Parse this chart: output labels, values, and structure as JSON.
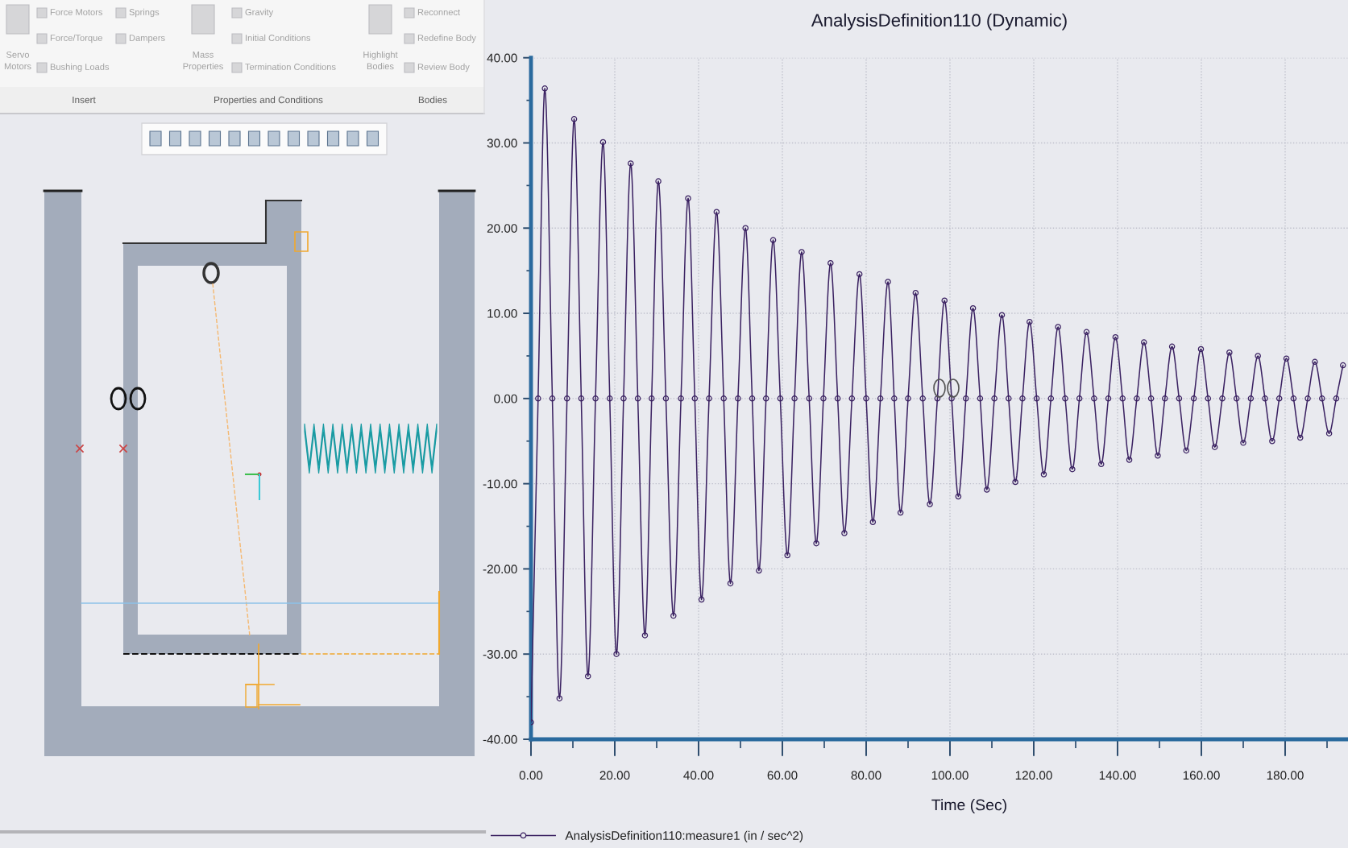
{
  "chart_data": {
    "type": "line",
    "title": "AnalysisDefinition110 (Dynamic)",
    "xlabel": "Time (Sec)",
    "x": [
      0.0,
      1.7,
      3.3,
      5.1,
      6.8,
      8.6,
      10.3,
      12.0,
      13.6,
      15.4,
      17.2,
      18.8,
      20.4,
      22.1,
      23.8,
      25.5,
      27.2,
      28.8,
      30.4,
      32.2,
      34.0,
      35.8,
      37.5,
      39.1,
      40.7,
      42.5,
      44.3,
      46.0,
      47.6,
      49.4,
      51.2,
      52.8,
      54.4,
      56.1,
      57.8,
      59.5,
      61.2,
      62.9,
      64.6,
      66.4,
      68.1,
      69.8,
      71.5,
      73.2,
      74.8,
      76.6,
      78.4,
      80.0,
      81.6,
      83.4,
      85.2,
      86.7,
      88.2,
      90.0,
      91.8,
      93.5,
      95.2,
      97.0,
      98.7,
      100.4,
      102.0,
      103.8,
      105.5,
      107.2,
      108.8,
      110.6,
      112.4,
      114.0,
      115.6,
      117.3,
      119.0,
      120.7,
      122.4,
      124.1,
      125.8,
      127.5,
      129.2,
      130.9,
      132.6,
      134.4,
      136.1,
      137.8,
      139.5,
      141.2,
      142.8,
      144.6,
      146.3,
      148.0,
      149.6,
      151.3,
      153.0,
      154.7,
      156.4,
      158.2,
      159.9,
      161.6,
      163.2,
      165.0,
      166.7,
      168.4,
      170.0,
      171.8,
      173.5,
      175.2,
      176.9,
      178.6,
      180.3,
      182.0,
      183.6,
      185.4,
      187.1,
      188.8,
      190.5,
      192.2,
      193.8
    ],
    "series": [
      {
        "name": "AnalysisDefinition110:measure1 (in / sec^2)",
        "color": "#3b2262",
        "values": [
          -38.0,
          0,
          36.4,
          0,
          -35.2,
          0,
          32.8,
          0,
          -32.6,
          0,
          30.1,
          0,
          -30.0,
          0,
          27.6,
          0,
          -27.8,
          0,
          25.5,
          0,
          -25.5,
          0,
          23.5,
          0,
          -23.6,
          0,
          21.9,
          0,
          -21.7,
          0,
          20.0,
          0,
          -20.2,
          0,
          18.6,
          0,
          -18.4,
          0,
          17.2,
          0,
          -17.0,
          0,
          15.9,
          0,
          -15.8,
          0,
          14.6,
          0,
          -14.5,
          0,
          13.7,
          0,
          -13.4,
          0,
          12.4,
          0,
          -12.4,
          0,
          11.5,
          0,
          -11.5,
          0,
          10.6,
          0,
          -10.7,
          0,
          9.8,
          0,
          -9.8,
          0,
          9.0,
          0,
          -8.9,
          0,
          8.4,
          0,
          -8.3,
          0,
          7.8,
          0,
          -7.7,
          0,
          7.2,
          0,
          -7.2,
          0,
          6.6,
          0,
          -6.7,
          0,
          6.1,
          0,
          -6.1,
          0,
          5.8,
          0,
          -5.7,
          0,
          5.4,
          0,
          -5.2,
          0,
          5.0,
          0,
          -5.0,
          0,
          4.7,
          0,
          -4.6,
          0,
          4.3,
          0,
          -4.1,
          0,
          3.9
        ]
      }
    ],
    "xlim": [
      0,
      195
    ],
    "ylim": [
      -40,
      40
    ],
    "xticks": [
      {
        "value": 0,
        "label": "0.00"
      },
      {
        "value": 10,
        "label": null
      },
      {
        "value": 20,
        "label": "20.00"
      },
      {
        "value": 30,
        "label": null
      },
      {
        "value": 40,
        "label": "40.00"
      },
      {
        "value": 50,
        "label": null
      },
      {
        "value": 60,
        "label": "60.00"
      },
      {
        "value": 70,
        "label": null
      },
      {
        "value": 80,
        "label": "80.00"
      },
      {
        "value": 90,
        "label": null
      },
      {
        "value": 100,
        "label": "100.00"
      },
      {
        "value": 110,
        "label": null
      },
      {
        "value": 120,
        "label": "120.00"
      },
      {
        "value": 130,
        "label": null
      },
      {
        "value": 140,
        "label": "140.00"
      },
      {
        "value": 150,
        "label": null
      },
      {
        "value": 160,
        "label": "160.00"
      },
      {
        "value": 170,
        "label": null
      },
      {
        "value": 180,
        "label": "180.00"
      },
      {
        "value": 190,
        "label": null
      }
    ],
    "yticks": [
      {
        "value": -40,
        "label": "-40.00"
      },
      {
        "value": -35,
        "label": null
      },
      {
        "value": -30,
        "label": "-30.00"
      },
      {
        "value": -25,
        "label": null
      },
      {
        "value": -20,
        "label": "-20.00"
      },
      {
        "value": -15,
        "label": null
      },
      {
        "value": -10,
        "label": "-10.00"
      },
      {
        "value": -5,
        "label": null
      },
      {
        "value": 0,
        "label": "0.00"
      },
      {
        "value": 5,
        "label": null
      },
      {
        "value": 10,
        "label": "10.00"
      },
      {
        "value": 15,
        "label": null
      },
      {
        "value": 20,
        "label": "20.00"
      },
      {
        "value": 25,
        "label": null
      },
      {
        "value": 30,
        "label": "30.00"
      },
      {
        "value": 35,
        "label": null
      },
      {
        "value": 40,
        "label": "40.00"
      }
    ],
    "grid": true,
    "legend": "bottom",
    "marker": "circle",
    "line_style": "solid",
    "annotations": [
      "Servo\nMotors",
      "Force Motors",
      "Force/Torque",
      "Bushing Loads",
      "Springs",
      "Dampers",
      "Mass\nProperties",
      "Gravity",
      "Initial Conditions",
      "Termination Conditions",
      "Highlight\nBodies",
      "Reconnect",
      "Redefine Body",
      "Review Body",
      "Insert",
      "Properties and Conditions",
      "Bodies"
    ]
  }
}
